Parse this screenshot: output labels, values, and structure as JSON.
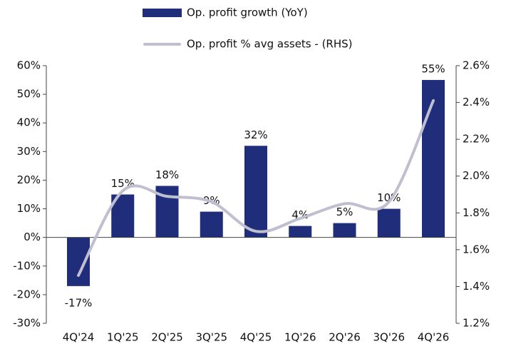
{
  "chart_data": {
    "type": "bar_line",
    "categories": [
      "4Q'24",
      "1Q'25",
      "2Q'25",
      "3Q'25",
      "4Q'25",
      "1Q'26",
      "2Q'26",
      "3Q'26",
      "4Q'26"
    ],
    "series": [
      {
        "name": "Op. profit growth (YoY)",
        "type": "bar",
        "color": "#1f2d7b",
        "values": [
          -17,
          15,
          18,
          9,
          32,
          4,
          5,
          10,
          55
        ],
        "value_labels": [
          "-17%",
          "15%",
          "18%",
          "9%",
          "32%",
          "4%",
          "5%",
          "10%",
          "55%"
        ]
      },
      {
        "name": "Op. profit % avg assets - (RHS)",
        "type": "line",
        "color": "#bfbfcf",
        "axis": "y2",
        "values": [
          1.46,
          1.92,
          1.89,
          1.86,
          1.7,
          1.77,
          1.85,
          1.86,
          2.41
        ]
      }
    ],
    "ylim": [
      -30,
      60
    ],
    "yticks": [
      {
        "value": -30,
        "label": "-30%"
      },
      {
        "value": -20,
        "label": "-20%"
      },
      {
        "value": -10,
        "label": "-10%"
      },
      {
        "value": 0,
        "label": "0%"
      },
      {
        "value": 10,
        "label": "10%"
      },
      {
        "value": 20,
        "label": "20%"
      },
      {
        "value": 30,
        "label": "30%"
      },
      {
        "value": 40,
        "label": "40%"
      },
      {
        "value": 50,
        "label": "50%"
      },
      {
        "value": 60,
        "label": "60%"
      }
    ],
    "y2lim": [
      1.2,
      2.6
    ],
    "y2ticks": [
      {
        "value": 1.2,
        "label": "1.2%"
      },
      {
        "value": 1.4,
        "label": "1.4%"
      },
      {
        "value": 1.6,
        "label": "1.6%"
      },
      {
        "value": 1.8,
        "label": "1.8%"
      },
      {
        "value": 2.0,
        "label": "2.0%"
      },
      {
        "value": 2.2,
        "label": "2.2%"
      },
      {
        "value": 2.4,
        "label": "2.4%"
      },
      {
        "value": 2.6,
        "label": "2.6%"
      }
    ],
    "legend": "top"
  }
}
